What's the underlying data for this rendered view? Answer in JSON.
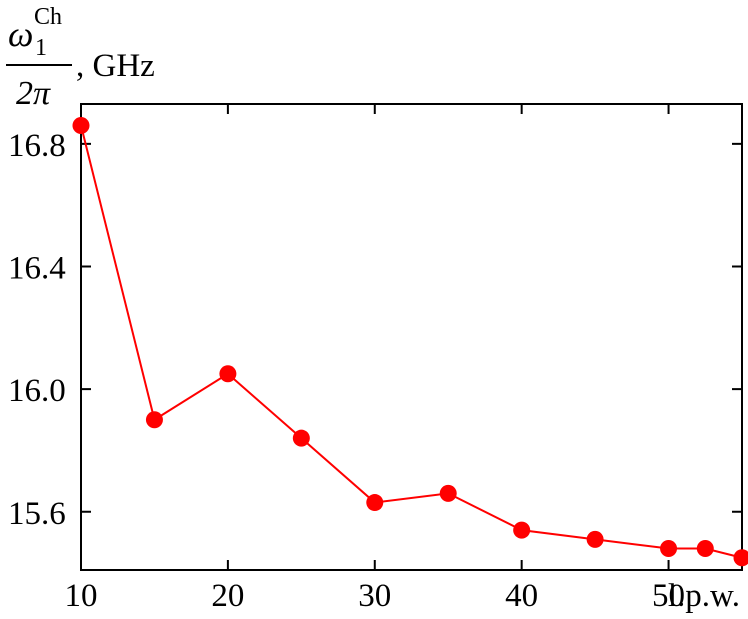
{
  "chart_data": {
    "type": "line",
    "ylabel": {
      "fraction_numerator": "ω",
      "numerator_subscript": "1",
      "numerator_superscript": "Ch",
      "fraction_denominator": "2π",
      "unit": ", GHz"
    },
    "xlabel": "l.p.w.",
    "x_ticks": [
      "10",
      "20",
      "30",
      "40",
      "50"
    ],
    "y_ticks": [
      "16.8",
      "16.4",
      "16.0",
      "15.6"
    ],
    "xlim": [
      10,
      55
    ],
    "ylim": [
      15.41,
      16.93
    ],
    "line_color": "#ff0000",
    "marker_color": "#ff0000",
    "series": [
      {
        "x": [
          10,
          15,
          20,
          25,
          30,
          35,
          40,
          45,
          50,
          52.5,
          55
        ],
        "y": [
          16.86,
          15.9,
          16.05,
          15.84,
          15.63,
          15.66,
          15.54,
          15.51,
          15.48,
          15.48,
          15.45
        ]
      }
    ]
  }
}
